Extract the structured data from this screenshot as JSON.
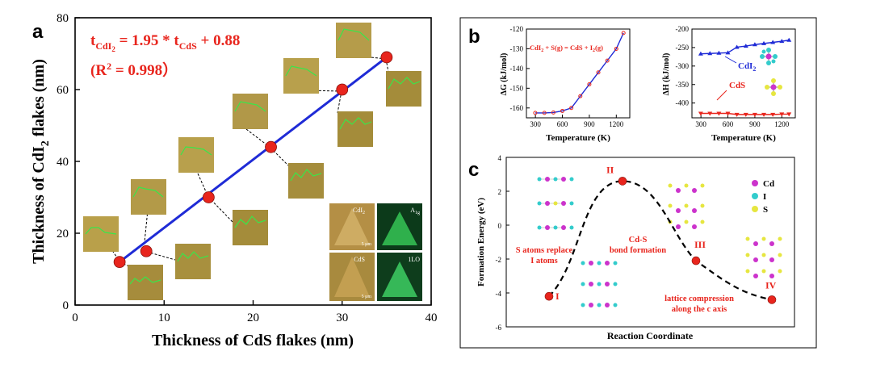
{
  "chart_data": [
    {
      "panel": "a",
      "type": "scatter",
      "xlabel": "Thickness of CdS flakes (nm)",
      "ylabel_main": "Thickness of CdI",
      "ylabel_sub": "2",
      "ylabel_tail": " flakes (nm)",
      "xlim": [
        0,
        40
      ],
      "ylim": [
        0,
        80
      ],
      "xticks": [
        "0",
        "10",
        "20",
        "30",
        "40"
      ],
      "yticks": [
        "0",
        "20",
        "40",
        "60",
        "80"
      ],
      "x": [
        5,
        8,
        15,
        22,
        30,
        35
      ],
      "y": [
        12,
        15,
        30,
        44,
        60,
        69
      ],
      "fit_line": {
        "x": [
          5,
          35
        ],
        "y": [
          12,
          69
        ]
      },
      "equation": {
        "lhs": "t",
        "lhs_sub": "CdI",
        "lhs_subsub": "2",
        "rhs1": " = 1.95 * t",
        "rhs_sub": "CdS",
        "rhs2": " + 0.88"
      },
      "r2": {
        "open": "(R",
        "sup": "2",
        "close": " = 0.998）"
      },
      "inset_labels": {
        "cdi2": "CdI",
        "cdi2_sub": "2",
        "cds": "CdS",
        "a1g": "A",
        "a1g_sub": "1g",
        "lo": "1LO",
        "scale1": "5 μm",
        "scale2": "5 μm"
      },
      "point_color": "#e8251d",
      "line_color": "#1f2bd6"
    },
    {
      "panel": "b-left",
      "type": "line",
      "xlabel": "Temperature (K)",
      "ylabel": "ΔG (kJ/mol)",
      "xlim": [
        200,
        1350
      ],
      "ylim": [
        -165,
        -120
      ],
      "xticks": [
        "300",
        "600",
        "900",
        "1200"
      ],
      "yticks": [
        "-160",
        "-150",
        "-140",
        "-130",
        "-120"
      ],
      "annotation": {
        "a": "CdI",
        "a_sub": "2",
        "b": " + S(g) = CdS + I",
        "b_sub": "2",
        "c": "(g)"
      },
      "x": [
        298,
        400,
        500,
        600,
        700,
        800,
        900,
        1000,
        1100,
        1200,
        1280
      ],
      "y": [
        -162.5,
        -162.5,
        -162.3,
        -161.5,
        -160,
        -154,
        -148,
        -142,
        -136,
        -130,
        -122
      ],
      "series_color": "#1f2bd6",
      "marker_color": "#e8251d"
    },
    {
      "panel": "b-right",
      "type": "line",
      "xlabel": "Temperature (K)",
      "ylabel": "ΔH (kJ/mol)",
      "xlim": [
        200,
        1350
      ],
      "ylim": [
        -440,
        -200
      ],
      "xticks": [
        "300",
        "600",
        "900",
        "1200"
      ],
      "yticks": [
        "-400",
        "-350",
        "-300",
        "-250",
        "-200"
      ],
      "series": [
        {
          "name": "CdI",
          "name_sub": "2",
          "x": [
            298,
            400,
            500,
            600,
            700,
            800,
            900,
            1000,
            1100,
            1200,
            1280
          ],
          "y": [
            -267,
            -266,
            -265,
            -264,
            -249,
            -246,
            -242,
            -239,
            -236,
            -233,
            -230
          ],
          "color": "#1f2bd6"
        },
        {
          "name": "CdS",
          "x": [
            298,
            400,
            500,
            600,
            700,
            800,
            900,
            1000,
            1100,
            1200,
            1280
          ],
          "y": [
            -428,
            -428,
            -428,
            -428,
            -431,
            -431,
            -431,
            -431,
            -431,
            -430,
            -430
          ],
          "color": "#e8251d"
        }
      ]
    },
    {
      "panel": "c",
      "type": "line",
      "xlabel": "Reaction Coordinate",
      "ylabel": "Formation Energy (eV)",
      "ylim": [
        -6,
        4
      ],
      "yticks": [
        "4",
        "2",
        "0",
        "-2",
        "-4",
        "-6"
      ],
      "x": [
        1,
        2,
        3,
        4
      ],
      "y": [
        -4.2,
        2.6,
        -2.1,
        -4.4
      ],
      "point_labels": [
        "I",
        "II",
        "III",
        "IV"
      ],
      "annotations": {
        "s_atoms_1": "S atoms replace",
        "s_atoms_2": "I atoms",
        "cds_1": "Cd-S",
        "cds_2": "bond formation",
        "lattice_1": "lattice compression",
        "lattice_2": "along the c axis"
      },
      "legend": [
        {
          "label": "Cd",
          "color": "#cc33cc"
        },
        {
          "label": "I",
          "color": "#33cccc"
        },
        {
          "label": "S",
          "color": "#e6e640"
        }
      ]
    }
  ],
  "panels": {
    "a": "a",
    "b": "b",
    "c": "c"
  }
}
